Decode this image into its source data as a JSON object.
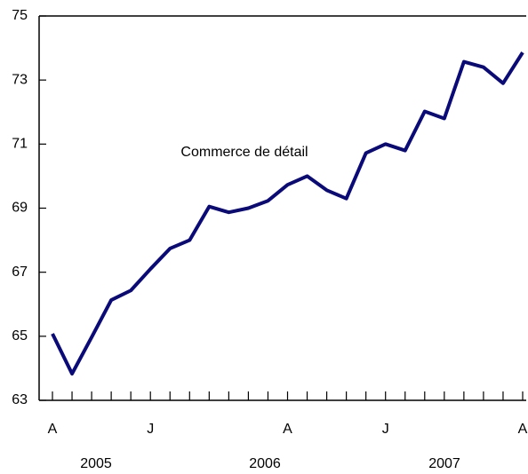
{
  "chart_data": {
    "type": "line",
    "annotation": "Commerce de détail",
    "categories": [
      "A",
      null,
      null,
      null,
      null,
      "J",
      null,
      null,
      null,
      null,
      null,
      null,
      "A",
      null,
      null,
      null,
      null,
      "J",
      null,
      null,
      null,
      null,
      null,
      null,
      "A"
    ],
    "years": [
      "2005",
      "2006",
      "2007"
    ],
    "series": [
      {
        "name": "Commerce de détail",
        "color": "#0a0a78",
        "values": [
          65.08,
          63.83,
          64.97,
          66.13,
          66.43,
          67.1,
          67.74,
          68.0,
          69.05,
          68.87,
          69.0,
          69.23,
          69.73,
          70.0,
          69.56,
          69.3,
          70.72,
          71.0,
          70.8,
          72.02,
          71.8,
          73.57,
          73.4,
          72.9,
          73.86
        ]
      }
    ],
    "ylim": [
      63,
      75
    ],
    "yticks": [
      63,
      65,
      67,
      69,
      71,
      73,
      75
    ],
    "grid": false
  }
}
